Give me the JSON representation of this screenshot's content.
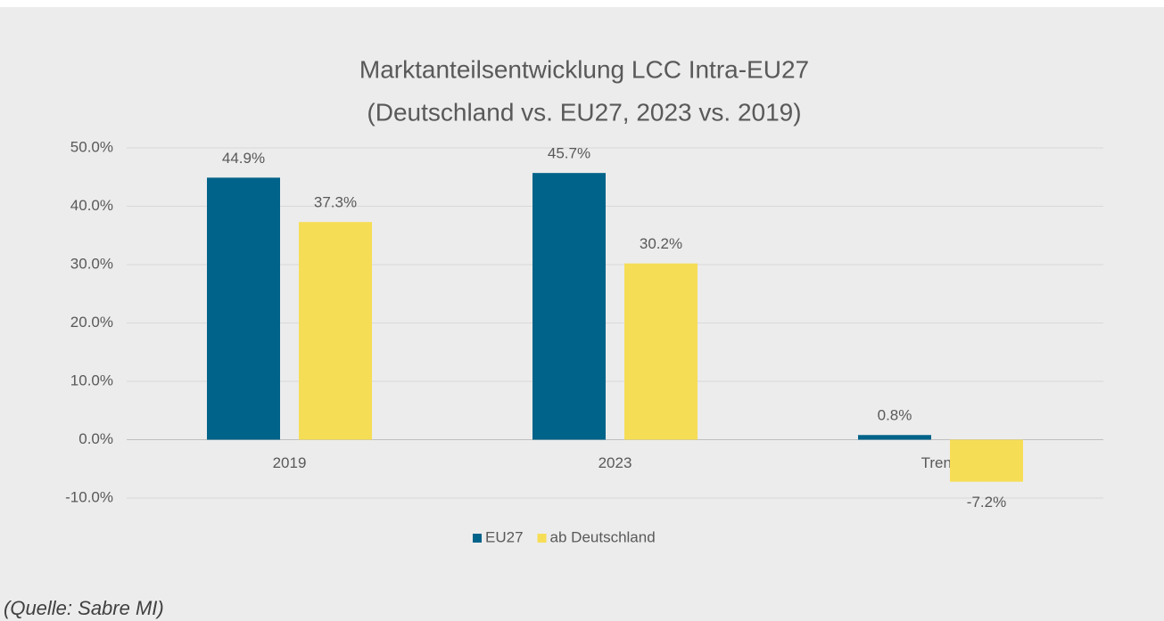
{
  "chart_data": {
    "type": "bar",
    "title": [
      "Marktanteilsentwicklung LCC Intra-EU27",
      "(Deutschland vs. EU27, 2023 vs. 2019)"
    ],
    "categories": [
      "2019",
      "2023",
      "Trend"
    ],
    "series": [
      {
        "name": "EU27",
        "color": "#006389",
        "values": [
          44.9,
          45.7,
          0.8
        ],
        "value_labels": [
          "44.9%",
          "45.7%",
          "0.8%"
        ]
      },
      {
        "name": "ab Deutschland",
        "color": "#f6dd56",
        "values": [
          37.3,
          30.2,
          -7.2
        ],
        "value_labels": [
          "37.3%",
          "30.2%",
          "-7.2%"
        ]
      }
    ],
    "ylim": [
      -10,
      50
    ],
    "yticks": [
      {
        "value": -10,
        "label": "-10.0%"
      },
      {
        "value": 0,
        "label": "0.0%"
      },
      {
        "value": 10,
        "label": "10.0%"
      },
      {
        "value": 20,
        "label": "20.0%"
      },
      {
        "value": 30,
        "label": "30.0%"
      },
      {
        "value": 40,
        "label": "40.0%"
      },
      {
        "value": 50,
        "label": "50.0%"
      }
    ],
    "grid": true,
    "legend": "bottom",
    "source": "(Quelle: Sabre MI)"
  }
}
